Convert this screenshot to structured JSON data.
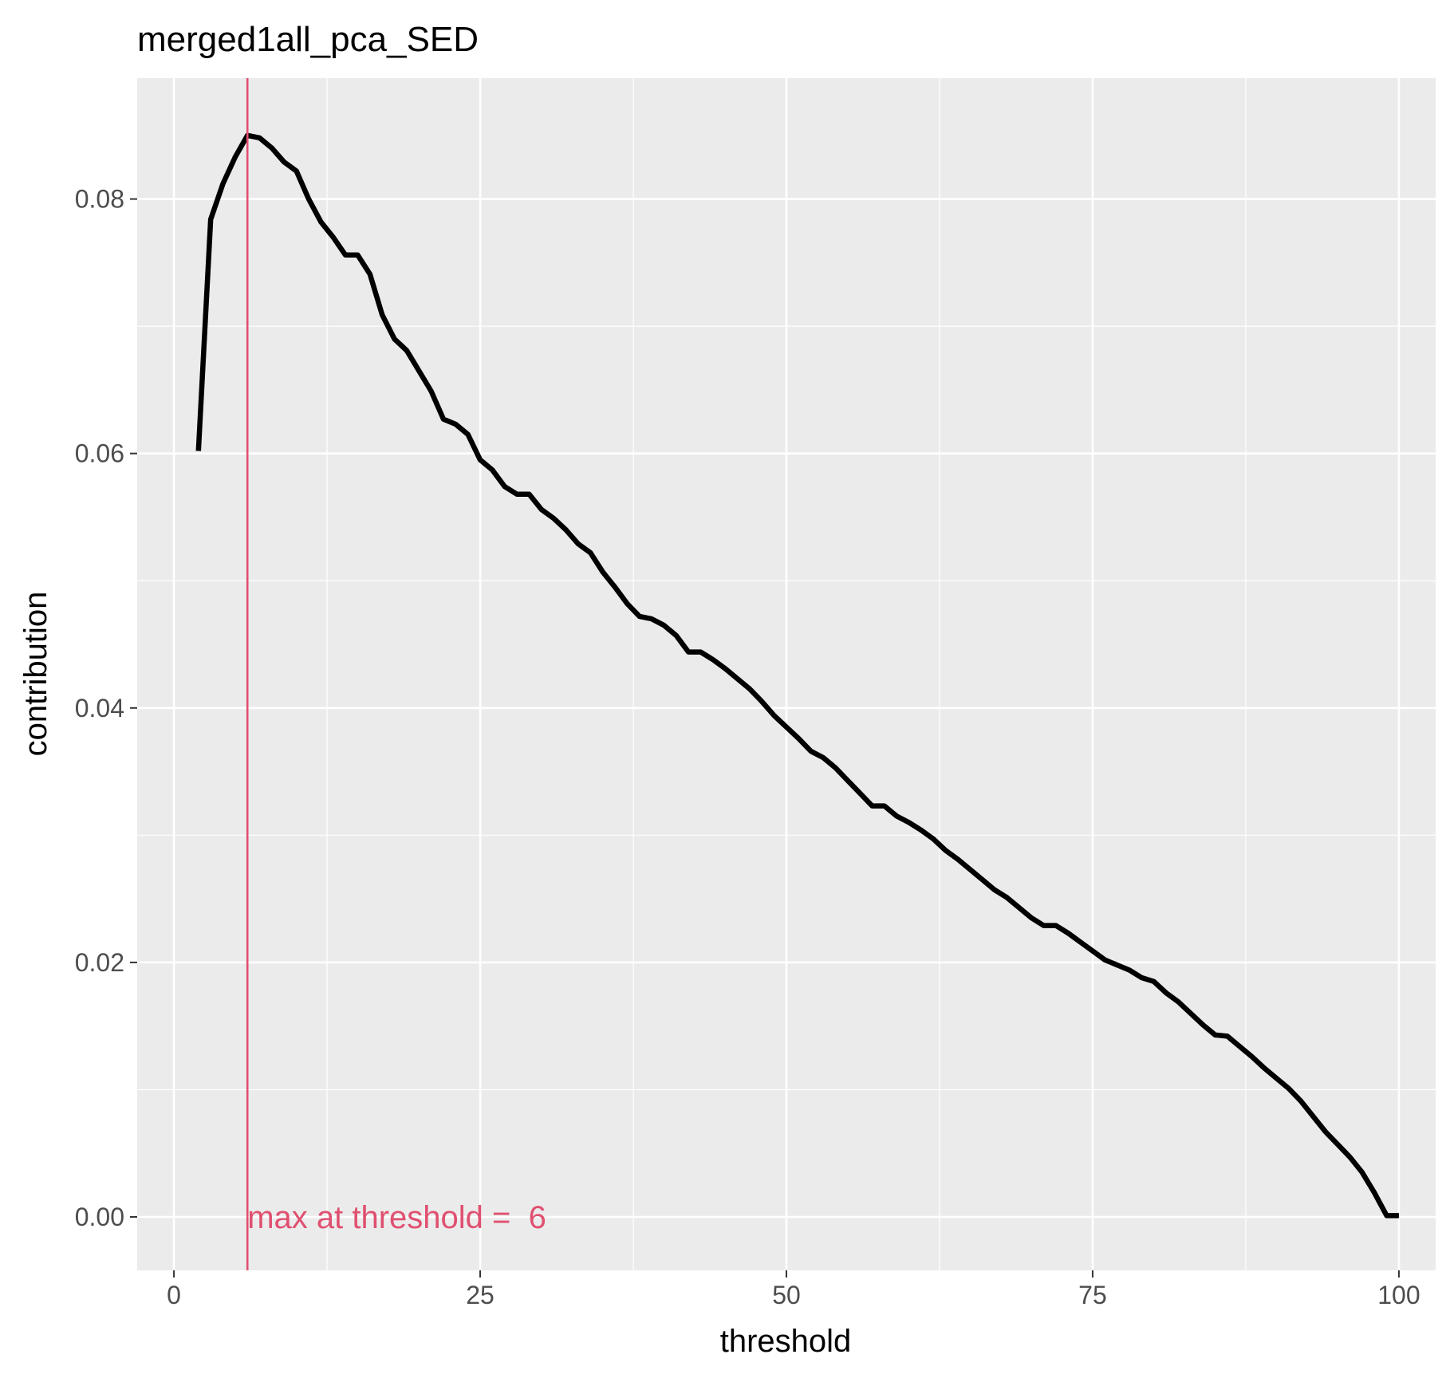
{
  "chart_data": {
    "type": "line",
    "title": "merged1all_pca_SED",
    "xlabel": "threshold",
    "ylabel": "contribution",
    "xlim": [
      -3,
      103
    ],
    "ylim": [
      -0.0042,
      0.0895
    ],
    "x_ticks": [
      0,
      25,
      50,
      75,
      100
    ],
    "x_tick_labels": [
      "0",
      "25",
      "50",
      "75",
      "100"
    ],
    "y_ticks": [
      0,
      0.02,
      0.04,
      0.06,
      0.08
    ],
    "y_tick_labels": [
      "0.00",
      "0.02",
      "0.04",
      "0.06",
      "0.08"
    ],
    "grid": true,
    "background": "#EBEBEB",
    "series": [
      {
        "color": "#000000",
        "x": [
          2,
          3,
          4,
          5,
          6,
          7,
          8,
          9,
          10,
          11,
          12,
          13,
          14,
          15,
          16,
          17,
          18,
          19,
          20,
          21,
          22,
          23,
          24,
          25,
          26,
          27,
          28,
          29,
          30,
          31,
          32,
          33,
          34,
          35,
          36,
          37,
          38,
          39,
          40,
          41,
          42,
          43,
          44,
          45,
          46,
          47,
          48,
          49,
          50,
          51,
          52,
          53,
          54,
          55,
          56,
          57,
          58,
          59,
          60,
          61,
          62,
          63,
          64,
          65,
          66,
          67,
          68,
          69,
          70,
          71,
          72,
          73,
          74,
          75,
          76,
          77,
          78,
          79,
          80,
          81,
          82,
          83,
          84,
          85,
          86,
          87,
          88,
          89,
          90,
          91,
          92,
          93,
          94,
          95,
          96,
          97,
          98,
          99,
          100
        ],
        "y": [
          0.0602,
          0.0784,
          0.0812,
          0.0833,
          0.085,
          0.0848,
          0.084,
          0.0829,
          0.0822,
          0.08,
          0.0782,
          0.077,
          0.0756,
          0.0756,
          0.0741,
          0.0709,
          0.069,
          0.0681,
          0.0665,
          0.0649,
          0.0627,
          0.0623,
          0.0615,
          0.0595,
          0.0587,
          0.0574,
          0.0568,
          0.0568,
          0.0556,
          0.0549,
          0.054,
          0.0529,
          0.0522,
          0.0507,
          0.0495,
          0.0482,
          0.0472,
          0.047,
          0.0465,
          0.0457,
          0.0444,
          0.0444,
          0.0438,
          0.0431,
          0.0423,
          0.0415,
          0.0405,
          0.0394,
          0.0385,
          0.0376,
          0.0366,
          0.0361,
          0.0353,
          0.0343,
          0.0333,
          0.0323,
          0.0323,
          0.0315,
          0.031,
          0.0304,
          0.0297,
          0.0288,
          0.0281,
          0.0273,
          0.0265,
          0.0257,
          0.0251,
          0.0243,
          0.0235,
          0.0229,
          0.0229,
          0.0223,
          0.0216,
          0.0209,
          0.0202,
          0.0198,
          0.0194,
          0.0188,
          0.0185,
          0.0176,
          0.0169,
          0.016,
          0.0151,
          0.0143,
          0.0142,
          0.0134,
          0.0126,
          0.0117,
          0.0109,
          0.0101,
          0.0091,
          0.0079,
          0.0067,
          0.0057,
          0.0047,
          0.0035,
          0.0019,
          0.0001,
          0.0001
        ]
      }
    ],
    "annotations": [
      {
        "type": "vline",
        "x": 6,
        "color": "#E05070",
        "text": "max at threshold =  6",
        "text_x": 6,
        "text_y": 0
      }
    ]
  }
}
